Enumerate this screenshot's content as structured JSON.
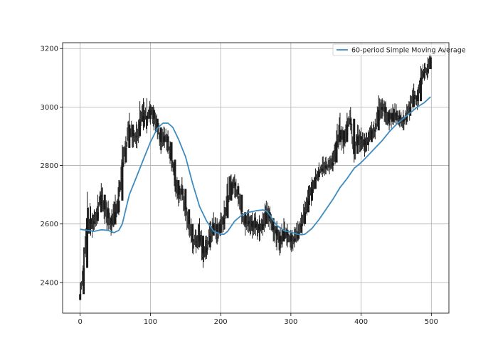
{
  "chart_data": {
    "type": "line",
    "title": "",
    "xlabel": "",
    "ylabel": "",
    "xlim": [
      -25,
      525
    ],
    "ylim": [
      2295,
      3220
    ],
    "xticks": [
      0,
      100,
      200,
      300,
      400,
      500
    ],
    "yticks": [
      2400,
      2600,
      2800,
      3000,
      3200
    ],
    "grid": true,
    "legend": {
      "placement": "top-right",
      "entries": [
        "60-period Simple Moving Average"
      ]
    },
    "colors": {
      "price": "#1a1a1a",
      "sma": "#3d8bbf",
      "grid": "#b0b0b0",
      "axis": "#000000"
    },
    "series": [
      {
        "name": "",
        "style": "candlestick",
        "x": [
          0,
          5,
          10,
          15,
          20,
          25,
          30,
          35,
          40,
          45,
          50,
          55,
          60,
          65,
          70,
          75,
          80,
          85,
          90,
          95,
          100,
          105,
          110,
          115,
          120,
          125,
          130,
          135,
          140,
          145,
          150,
          155,
          160,
          165,
          170,
          175,
          180,
          185,
          190,
          195,
          200,
          205,
          210,
          215,
          220,
          225,
          230,
          235,
          240,
          245,
          250,
          255,
          260,
          265,
          270,
          275,
          280,
          285,
          290,
          295,
          300,
          305,
          310,
          315,
          320,
          325,
          330,
          335,
          340,
          345,
          350,
          355,
          360,
          365,
          370,
          375,
          380,
          385,
          390,
          395,
          400,
          405,
          410,
          415,
          420,
          425,
          430,
          435,
          440,
          445,
          450,
          455,
          460,
          465,
          470,
          475,
          480,
          485,
          490,
          495,
          499
        ],
        "close": [
          2360,
          2450,
          2620,
          2600,
          2610,
          2640,
          2700,
          2650,
          2620,
          2600,
          2640,
          2680,
          2810,
          2860,
          2940,
          2900,
          2900,
          2950,
          2970,
          2960,
          2990,
          2960,
          2930,
          2880,
          2900,
          2880,
          2820,
          2750,
          2700,
          2720,
          2650,
          2600,
          2540,
          2540,
          2560,
          2500,
          2520,
          2560,
          2600,
          2570,
          2600,
          2620,
          2680,
          2740,
          2730,
          2700,
          2640,
          2600,
          2610,
          2590,
          2600,
          2580,
          2600,
          2640,
          2620,
          2580,
          2560,
          2540,
          2580,
          2560,
          2540,
          2550,
          2570,
          2600,
          2640,
          2680,
          2720,
          2760,
          2780,
          2790,
          2800,
          2800,
          2810,
          2880,
          2920,
          2880,
          2940,
          2960,
          2840,
          2900,
          2890,
          2870,
          2880,
          2920,
          2920,
          2990,
          3000,
          2980,
          2950,
          2980,
          2970,
          2960,
          2950,
          2970,
          3000,
          3040,
          3020,
          3100,
          3120,
          3130,
          3170
        ],
        "high": [
          2400,
          2520,
          2710,
          2660,
          2650,
          2700,
          2740,
          2700,
          2680,
          2650,
          2700,
          2750,
          2870,
          2900,
          2980,
          2940,
          2950,
          3020,
          3030,
          3030,
          3010,
          3000,
          2960,
          2920,
          2930,
          2920,
          2860,
          2800,
          2740,
          2760,
          2700,
          2640,
          2600,
          2580,
          2620,
          2560,
          2560,
          2610,
          2640,
          2620,
          2640,
          2680,
          2760,
          2770,
          2770,
          2740,
          2690,
          2640,
          2650,
          2640,
          2640,
          2630,
          2640,
          2680,
          2660,
          2620,
          2610,
          2590,
          2620,
          2600,
          2580,
          2590,
          2610,
          2640,
          2680,
          2730,
          2760,
          2790,
          2810,
          2830,
          2830,
          2830,
          2850,
          2920,
          2980,
          2920,
          2980,
          3000,
          2900,
          2940,
          2930,
          2910,
          2920,
          2950,
          2960,
          3040,
          3030,
          3020,
          2990,
          3010,
          3010,
          2990,
          2990,
          3010,
          3040,
          3080,
          3060,
          3140,
          3150,
          3170,
          3180
        ],
        "low": [
          2340,
          2420,
          2560,
          2560,
          2580,
          2600,
          2640,
          2600,
          2580,
          2570,
          2600,
          2630,
          2760,
          2820,
          2890,
          2860,
          2860,
          2900,
          2920,
          2910,
          2940,
          2920,
          2890,
          2840,
          2860,
          2840,
          2780,
          2710,
          2660,
          2680,
          2610,
          2560,
          2500,
          2500,
          2520,
          2450,
          2480,
          2510,
          2560,
          2530,
          2560,
          2580,
          2640,
          2700,
          2690,
          2660,
          2600,
          2560,
          2570,
          2550,
          2560,
          2540,
          2560,
          2600,
          2580,
          2540,
          2510,
          2500,
          2540,
          2520,
          2510,
          2520,
          2540,
          2570,
          2600,
          2640,
          2680,
          2720,
          2750,
          2760,
          2770,
          2770,
          2780,
          2840,
          2870,
          2840,
          2900,
          2920,
          2810,
          2860,
          2850,
          2830,
          2850,
          2890,
          2890,
          2950,
          2960,
          2940,
          2920,
          2940,
          2940,
          2930,
          2920,
          2940,
          2970,
          3000,
          2990,
          3060,
          3090,
          3100,
          3140
        ]
      },
      {
        "name": "60-period Simple Moving Average",
        "style": "line",
        "x": [
          0,
          10,
          20,
          30,
          40,
          48,
          55,
          60,
          70,
          80,
          90,
          100,
          110,
          118,
          125,
          132,
          140,
          150,
          160,
          170,
          180,
          190,
          200,
          205,
          210,
          220,
          230,
          240,
          250,
          260,
          265,
          270,
          280,
          290,
          300,
          310,
          315,
          320,
          330,
          340,
          350,
          360,
          370,
          380,
          390,
          400,
          410,
          420,
          430,
          440,
          450,
          460,
          470,
          480,
          490,
          499
        ],
        "values": [
          2582,
          2578,
          2575,
          2580,
          2578,
          2570,
          2578,
          2600,
          2700,
          2760,
          2820,
          2880,
          2928,
          2945,
          2945,
          2930,
          2890,
          2830,
          2740,
          2660,
          2610,
          2575,
          2565,
          2565,
          2575,
          2610,
          2630,
          2640,
          2645,
          2648,
          2645,
          2630,
          2595,
          2578,
          2572,
          2565,
          2563,
          2565,
          2585,
          2615,
          2650,
          2685,
          2725,
          2755,
          2790,
          2810,
          2835,
          2860,
          2885,
          2915,
          2940,
          2960,
          2980,
          3000,
          3015,
          3035
        ]
      }
    ]
  }
}
